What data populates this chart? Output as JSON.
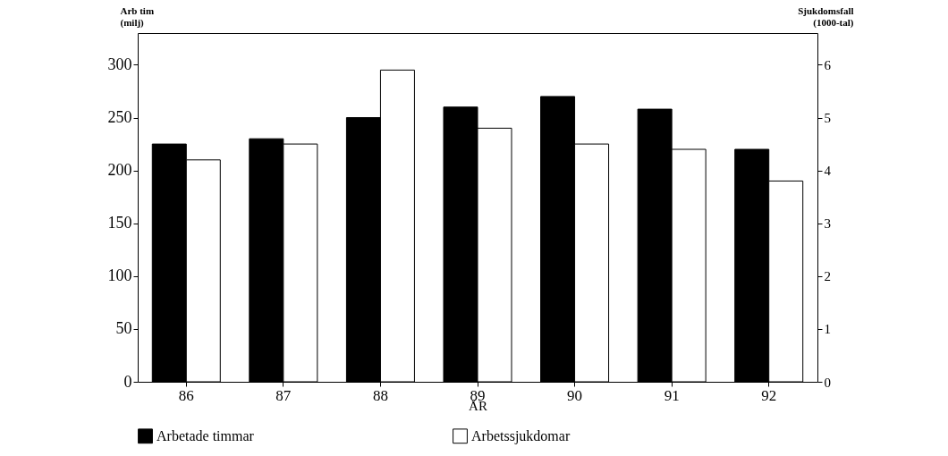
{
  "chart_data": {
    "type": "bar",
    "xlabel": "ÅR",
    "ylabel": "Arb tim\n(milj)",
    "y2label": "Sjukdomsfall\n(1000-tal)",
    "categories": [
      "86",
      "87",
      "88",
      "89",
      "90",
      "91",
      "92"
    ],
    "series": [
      {
        "name": "Arbetade timmar",
        "color": "#000000",
        "values": [
          225,
          230,
          250,
          260,
          270,
          258,
          220
        ]
      },
      {
        "name": "Arbetssjukdomar",
        "color": "#ffffff",
        "axis": "y2",
        "values": [
          4.2,
          4.5,
          5.9,
          4.8,
          4.5,
          4.4,
          3.8
        ]
      }
    ],
    "ylim": [
      0,
      330
    ],
    "yticks": [
      0,
      50,
      100,
      150,
      200,
      250,
      300
    ],
    "y2lim": [
      0,
      6.6
    ],
    "y2ticks": [
      0,
      1,
      2,
      3,
      4,
      5,
      6
    ],
    "grid": false,
    "legend": "bottom"
  }
}
